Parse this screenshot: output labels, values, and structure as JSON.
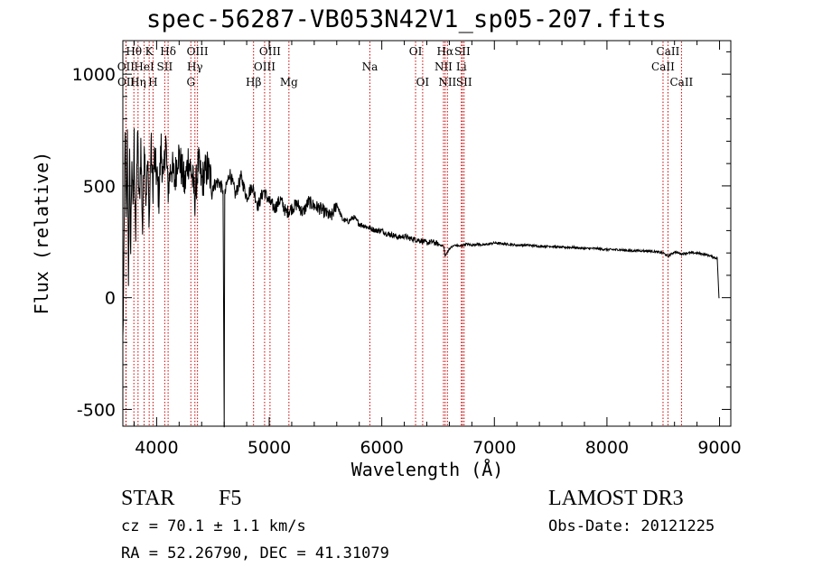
{
  "chart_data": {
    "type": "line",
    "title": "spec-56287-VB053N42V1_sp05-207.fits",
    "xlabel": "Wavelength (Å)",
    "ylabel": "Flux (relative)",
    "xlim": [
      3700,
      9100
    ],
    "ylim": [
      -575,
      1150
    ],
    "xticks": [
      4000,
      5000,
      6000,
      7000,
      8000,
      9000
    ],
    "yticks": [
      -500,
      0,
      500,
      1000
    ],
    "series": [
      {
        "name": "flux",
        "x": [
          3700,
          3710,
          3720,
          3730,
          3740,
          3750,
          3760,
          3770,
          3780,
          3790,
          3800,
          3815,
          3830,
          3845,
          3860,
          3875,
          3890,
          3905,
          3920,
          3935,
          3950,
          3965,
          3980,
          4000,
          4020,
          4040,
          4060,
          4080,
          4100,
          4130,
          4160,
          4190,
          4220,
          4250,
          4280,
          4310,
          4340,
          4370,
          4400,
          4450,
          4500,
          4550,
          4590,
          4600,
          4605,
          4610,
          4620,
          4650,
          4700,
          4750,
          4800,
          4850,
          4900,
          4950,
          5000,
          5050,
          5100,
          5150,
          5200,
          5250,
          5300,
          5350,
          5400,
          5450,
          5500,
          5550,
          5600,
          5650,
          5700,
          5750,
          5800,
          5850,
          5900,
          5950,
          6000,
          6050,
          6100,
          6150,
          6200,
          6250,
          6300,
          6350,
          6400,
          6450,
          6500,
          6550,
          6563,
          6600,
          6650,
          6700,
          6750,
          6800,
          6850,
          6900,
          7000,
          7100,
          7200,
          7300,
          7400,
          7500,
          7600,
          7700,
          7800,
          7900,
          8000,
          8100,
          8200,
          8300,
          8400,
          8500,
          8542,
          8600,
          8662,
          8700,
          8800,
          8900,
          8980,
          8995,
          9000
        ],
        "values": [
          -200,
          150,
          800,
          300,
          700,
          100,
          600,
          200,
          650,
          350,
          700,
          250,
          750,
          400,
          680,
          300,
          720,
          450,
          600,
          350,
          700,
          480,
          620,
          550,
          450,
          680,
          500,
          720,
          480,
          600,
          520,
          650,
          580,
          500,
          620,
          560,
          450,
          600,
          520,
          580,
          500,
          520,
          480,
          -580,
          450,
          470,
          500,
          560,
          460,
          540,
          450,
          500,
          410,
          480,
          430,
          400,
          440,
          380,
          400,
          420,
          380,
          430,
          410,
          400,
          380,
          360,
          420,
          350,
          340,
          360,
          330,
          320,
          310,
          300,
          300,
          285,
          280,
          270,
          275,
          265,
          260,
          255,
          245,
          250,
          240,
          230,
          185,
          220,
          235,
          230,
          240,
          235,
          240,
          235,
          245,
          240,
          235,
          235,
          230,
          230,
          225,
          225,
          220,
          220,
          215,
          215,
          210,
          210,
          208,
          200,
          185,
          205,
          195,
          200,
          200,
          190,
          175,
          0,
          0
        ]
      }
    ],
    "line_markers": [
      {
        "name": "OII",
        "wl": 3727,
        "row": 2
      },
      {
        "name": "OII",
        "wl": 3729,
        "row": 3
      },
      {
        "name": "Hθ",
        "wl": 3798,
        "row": 1
      },
      {
        "name": "Hη",
        "wl": 3835,
        "row": 3
      },
      {
        "name": "HeI",
        "wl": 3889,
        "row": 2
      },
      {
        "name": "K",
        "wl": 3934,
        "row": 1
      },
      {
        "name": "H",
        "wl": 3968,
        "row": 3
      },
      {
        "name": "SII",
        "wl": 4072,
        "row": 2
      },
      {
        "name": "Hδ",
        "wl": 4102,
        "row": 1
      },
      {
        "name": "G",
        "wl": 4304,
        "row": 3
      },
      {
        "name": "Hγ",
        "wl": 4340,
        "row": 2
      },
      {
        "name": "OIII",
        "wl": 4363,
        "row": 1
      },
      {
        "name": "Hβ",
        "wl": 4861,
        "row": 3
      },
      {
        "name": "OIII",
        "wl": 4959,
        "row": 2
      },
      {
        "name": "OIII",
        "wl": 5007,
        "row": 1
      },
      {
        "name": "Mg",
        "wl": 5175,
        "row": 3
      },
      {
        "name": "Na",
        "wl": 5894,
        "row": 2
      },
      {
        "name": "OI",
        "wl": 6300,
        "row": 1
      },
      {
        "name": "OI",
        "wl": 6363,
        "row": 3
      },
      {
        "name": "NII",
        "wl": 6548,
        "row": 2
      },
      {
        "name": "Hα",
        "wl": 6563,
        "row": 1
      },
      {
        "name": "NII",
        "wl": 6583,
        "row": 3
      },
      {
        "name": "Li",
        "wl": 6707,
        "row": 2
      },
      {
        "name": "SII",
        "wl": 6716,
        "row": 1
      },
      {
        "name": "SII",
        "wl": 6731,
        "row": 3
      },
      {
        "name": "CaII",
        "wl": 8498,
        "row": 2
      },
      {
        "name": "CaII",
        "wl": 8542,
        "row": 1
      },
      {
        "name": "CaII",
        "wl": 8662,
        "row": 3
      }
    ],
    "colors": {
      "spectrum": "#000000",
      "markers": "#cc0000",
      "axes": "#000000"
    }
  },
  "info": {
    "class_label": "STAR",
    "subclass": "F5",
    "survey": "LAMOST DR3",
    "cz": "cz = 70.1 ± 1.1 km/s",
    "obs_date": "Obs-Date: 20121225",
    "coords": "RA =  52.26790, DEC =  41.31079"
  }
}
